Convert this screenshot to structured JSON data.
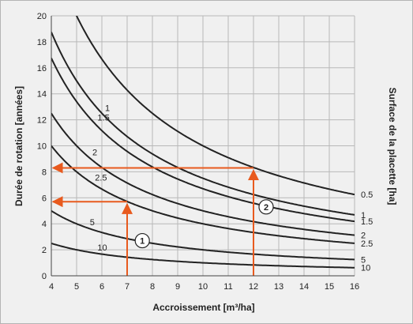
{
  "chart_data": {
    "type": "line",
    "title": "",
    "xlabel": "Accroissement [m³/ha]",
    "ylabel": "Durée de rotation [années]",
    "y2label": "Surface de la placette [ha]",
    "xlim": [
      4,
      16
    ],
    "ylim": [
      0,
      20
    ],
    "xticks": [
      "4",
      "5",
      "6",
      "7",
      "8",
      "9",
      "10",
      "11",
      "12",
      "13",
      "14",
      "15",
      "16"
    ],
    "yticks": [
      "0",
      "2",
      "4",
      "6",
      "8",
      "10",
      "12",
      "14",
      "16",
      "18",
      "20"
    ],
    "grid": true,
    "series": [
      {
        "name": "0.5",
        "inside_label": "",
        "right_label": "0.5",
        "constant": 100
      },
      {
        "name": "1",
        "inside_label": "1",
        "right_label": "1",
        "constant": 75,
        "inside_x": 6.0
      },
      {
        "name": "1.5",
        "inside_label": "1.5",
        "right_label": "1.5",
        "constant": 67,
        "inside_x": 5.7
      },
      {
        "name": "2",
        "inside_label": "2",
        "right_label": "2",
        "constant": 50,
        "inside_x": 5.5
      },
      {
        "name": "2.5",
        "inside_label": "2.5",
        "right_label": "2.5",
        "constant": 40,
        "inside_x": 5.6
      },
      {
        "name": "5",
        "inside_label": "5",
        "right_label": "5",
        "constant": 20,
        "inside_x": 5.4
      },
      {
        "name": "10",
        "inside_label": "10",
        "right_label": "10",
        "constant": 10,
        "inside_x": 5.7
      }
    ],
    "examples": [
      {
        "marker": "1",
        "x": 7,
        "y": 5.7,
        "marker_x": 7.6,
        "marker_y": 2.7
      },
      {
        "marker": "2",
        "x": 12,
        "y": 8.3,
        "marker_x": 12.5,
        "marker_y": 5.3
      }
    ],
    "colors": {
      "curve": "#222222",
      "grid": "#b8b8b8",
      "arrow": "#e85a1e",
      "plot_bg": "#f0f0f0"
    }
  }
}
